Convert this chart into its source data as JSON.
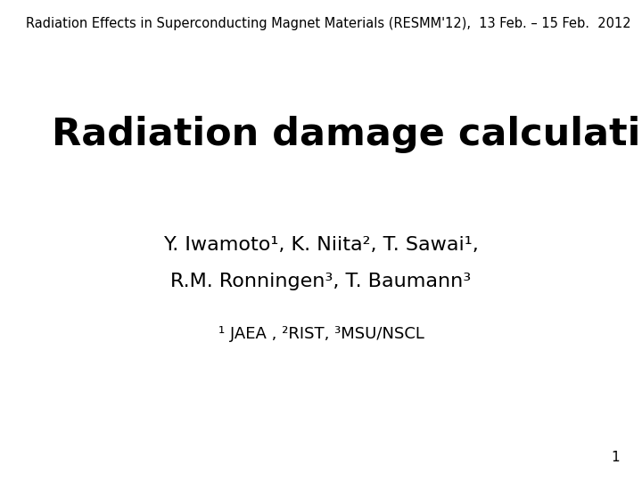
{
  "background_color": "#ffffff",
  "header_text": "Radiation Effects in Superconducting Magnet Materials (RESMM'12),  13 Feb. – 15 Feb.  2012",
  "header_fontsize": 10.5,
  "header_color": "#000000",
  "title_line1": "Radiation damage calculation in PHITS",
  "title_fontsize": 31,
  "title_color": "#000000",
  "line1_text": "Y. Iwamoto¹, K. Niita², T. Sawai¹,",
  "line2_text": "R.M. Ronningen³, T. Baumann³",
  "authors_fontsize": 16,
  "authors_color": "#000000",
  "affiliations": "¹ JAEA , ²RIST, ³MSU/NSCL",
  "affiliations_fontsize": 13,
  "affiliations_color": "#000000",
  "page_number": "1",
  "page_fontsize": 11,
  "page_color": "#000000"
}
